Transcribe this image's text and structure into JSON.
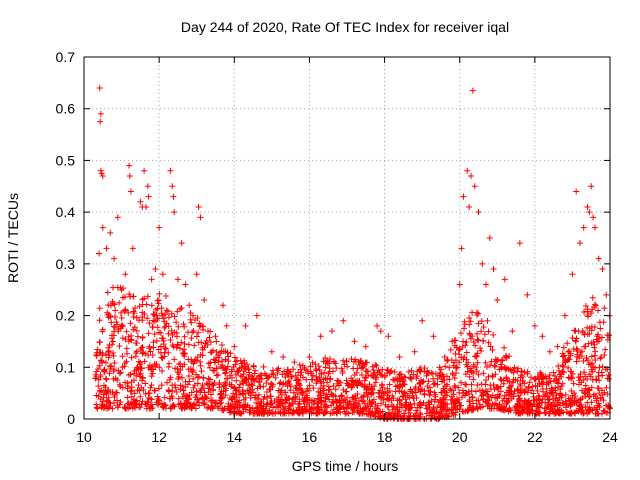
{
  "chart_data": {
    "type": "scatter",
    "title": "Day 244 of 2020, Rate Of TEC Index for receiver iqal",
    "xlabel": "GPS time / hours",
    "ylabel": "ROTI / TECUs",
    "xlim": [
      10,
      24
    ],
    "ylim": [
      0,
      0.7
    ],
    "x_ticks": [
      10,
      12,
      14,
      16,
      18,
      20,
      22,
      24
    ],
    "y_ticks": [
      0,
      0.1,
      0.2,
      0.3,
      0.4,
      0.5,
      0.6,
      0.7
    ],
    "x_tick_labels": [
      "10",
      "12",
      "14",
      "16",
      "18",
      "20",
      "22",
      "24"
    ],
    "y_tick_labels": [
      "0",
      "0.1",
      "0.2",
      "0.3",
      "0.4",
      "0.5",
      "0.6",
      "0.7"
    ],
    "grid": true,
    "marker": "+",
    "color": "#ff0000",
    "series": [
      {
        "name": "ROTI",
        "points": [
          [
            10.42,
            0.64
          ],
          [
            10.45,
            0.59
          ],
          [
            10.43,
            0.575
          ],
          [
            10.45,
            0.48
          ],
          [
            10.47,
            0.475
          ],
          [
            10.5,
            0.47
          ],
          [
            10.4,
            0.32
          ],
          [
            10.5,
            0.37
          ],
          [
            10.6,
            0.33
          ],
          [
            10.7,
            0.36
          ],
          [
            10.8,
            0.31
          ],
          [
            10.9,
            0.39
          ],
          [
            11.0,
            0.25
          ],
          [
            11.1,
            0.28
          ],
          [
            11.2,
            0.49
          ],
          [
            11.22,
            0.47
          ],
          [
            11.25,
            0.44
          ],
          [
            11.3,
            0.33
          ],
          [
            11.5,
            0.42
          ],
          [
            11.55,
            0.41
          ],
          [
            11.6,
            0.48
          ],
          [
            11.65,
            0.41
          ],
          [
            11.7,
            0.45
          ],
          [
            11.72,
            0.43
          ],
          [
            11.8,
            0.27
          ],
          [
            11.9,
            0.29
          ],
          [
            12.0,
            0.37
          ],
          [
            12.1,
            0.28
          ],
          [
            12.2,
            0.21
          ],
          [
            12.3,
            0.48
          ],
          [
            12.35,
            0.45
          ],
          [
            12.38,
            0.43
          ],
          [
            12.4,
            0.4
          ],
          [
            12.5,
            0.27
          ],
          [
            12.6,
            0.34
          ],
          [
            12.7,
            0.26
          ],
          [
            12.8,
            0.22
          ],
          [
            12.9,
            0.2
          ],
          [
            13.0,
            0.28
          ],
          [
            13.05,
            0.41
          ],
          [
            13.1,
            0.39
          ],
          [
            13.2,
            0.23
          ],
          [
            13.3,
            0.17
          ],
          [
            13.5,
            0.16
          ],
          [
            13.7,
            0.22
          ],
          [
            13.8,
            0.18
          ],
          [
            14.0,
            0.14
          ],
          [
            14.3,
            0.18
          ],
          [
            14.6,
            0.2
          ],
          [
            15.0,
            0.13
          ],
          [
            15.3,
            0.12
          ],
          [
            15.6,
            0.11
          ],
          [
            16.0,
            0.12
          ],
          [
            16.3,
            0.16
          ],
          [
            16.6,
            0.17
          ],
          [
            16.9,
            0.19
          ],
          [
            17.2,
            0.15
          ],
          [
            17.5,
            0.14
          ],
          [
            17.8,
            0.18
          ],
          [
            17.9,
            0.17
          ],
          [
            18.1,
            0.16
          ],
          [
            18.4,
            0.12
          ],
          [
            18.8,
            0.13
          ],
          [
            19.0,
            0.19
          ],
          [
            19.3,
            0.16
          ],
          [
            19.6,
            0.12
          ],
          [
            19.8,
            0.15
          ],
          [
            20.0,
            0.26
          ],
          [
            20.05,
            0.33
          ],
          [
            20.1,
            0.43
          ],
          [
            20.2,
            0.48
          ],
          [
            20.25,
            0.41
          ],
          [
            20.3,
            0.47
          ],
          [
            20.35,
            0.635
          ],
          [
            20.4,
            0.45
          ],
          [
            20.5,
            0.4
          ],
          [
            20.6,
            0.3
          ],
          [
            20.7,
            0.26
          ],
          [
            20.8,
            0.35
          ],
          [
            20.9,
            0.29
          ],
          [
            21.0,
            0.23
          ],
          [
            21.2,
            0.27
          ],
          [
            21.4,
            0.17
          ],
          [
            21.6,
            0.34
          ],
          [
            21.8,
            0.24
          ],
          [
            22.0,
            0.18
          ],
          [
            22.2,
            0.16
          ],
          [
            22.4,
            0.13
          ],
          [
            22.6,
            0.14
          ],
          [
            22.8,
            0.2
          ],
          [
            23.0,
            0.28
          ],
          [
            23.1,
            0.44
          ],
          [
            23.2,
            0.34
          ],
          [
            23.3,
            0.37
          ],
          [
            23.4,
            0.41
          ],
          [
            23.45,
            0.4
          ],
          [
            23.5,
            0.45
          ],
          [
            23.55,
            0.39
          ],
          [
            23.6,
            0.37
          ],
          [
            23.7,
            0.31
          ],
          [
            23.8,
            0.29
          ],
          [
            23.9,
            0.24
          ]
        ],
        "band": [
          [
            10.3,
            0.02,
            0.22
          ],
          [
            10.6,
            0.02,
            0.25
          ],
          [
            11.0,
            0.02,
            0.26
          ],
          [
            11.5,
            0.02,
            0.24
          ],
          [
            12.0,
            0.02,
            0.25
          ],
          [
            12.5,
            0.02,
            0.22
          ],
          [
            13.0,
            0.02,
            0.2
          ],
          [
            13.5,
            0.02,
            0.16
          ],
          [
            14.0,
            0.01,
            0.12
          ],
          [
            14.5,
            0.01,
            0.11
          ],
          [
            15.0,
            0.01,
            0.1
          ],
          [
            15.5,
            0.01,
            0.1
          ],
          [
            16.0,
            0.01,
            0.11
          ],
          [
            16.5,
            0.01,
            0.12
          ],
          [
            17.0,
            0.01,
            0.12
          ],
          [
            17.5,
            0.01,
            0.11
          ],
          [
            18.0,
            0.0,
            0.1
          ],
          [
            18.5,
            0.0,
            0.09
          ],
          [
            19.0,
            0.0,
            0.1
          ],
          [
            19.5,
            0.0,
            0.1
          ],
          [
            20.0,
            0.01,
            0.18
          ],
          [
            20.5,
            0.02,
            0.22
          ],
          [
            21.0,
            0.02,
            0.16
          ],
          [
            21.5,
            0.01,
            0.1
          ],
          [
            22.0,
            0.01,
            0.09
          ],
          [
            22.5,
            0.01,
            0.09
          ],
          [
            23.0,
            0.01,
            0.18
          ],
          [
            23.5,
            0.01,
            0.24
          ],
          [
            24.0,
            0.01,
            0.22
          ]
        ]
      }
    ]
  }
}
